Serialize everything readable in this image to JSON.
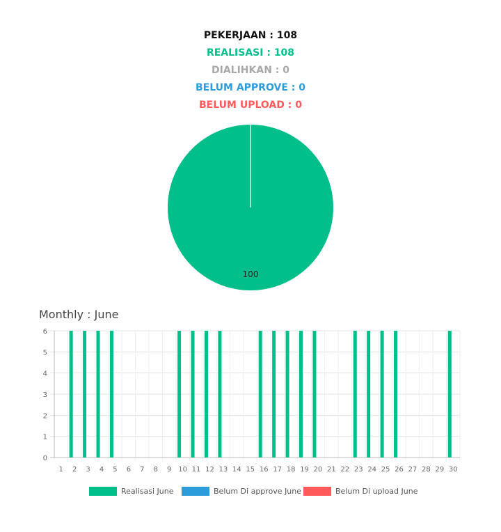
{
  "stats": {
    "pekerjaan": "PEKERJAAN : 108",
    "realisasi": "REALISASI : 108",
    "dialihkan": "DIALIHKAN : 0",
    "belum_approve": "BELUM APPROVE : 0",
    "belum_upload": "BELUM UPLOAD : 0"
  },
  "colors": {
    "pekerjaan": "#111111",
    "realisasi": "#00bf8a",
    "dialihkan": "#a8a8a8",
    "belum_approve": "#2d9cdb",
    "belum_upload": "#ff5a5a"
  },
  "monthly_title": "Monthly : June",
  "chart_data": [
    {
      "type": "pie",
      "categories": [
        "Realisasi"
      ],
      "values": [
        100
      ],
      "data_labels": [
        "100"
      ],
      "colors": [
        "#00bf8a"
      ]
    },
    {
      "type": "bar",
      "title": "",
      "xlabel": "",
      "ylabel": "",
      "ylim": [
        0,
        6
      ],
      "yticks": [
        "0",
        "1",
        "2",
        "3",
        "4",
        "5",
        "6"
      ],
      "grid": true,
      "legend_position": "bottom",
      "categories": [
        "1",
        "2",
        "3",
        "4",
        "5",
        "6",
        "7",
        "8",
        "9",
        "10",
        "11",
        "12",
        "13",
        "14",
        "15",
        "16",
        "17",
        "18",
        "19",
        "20",
        "21",
        "22",
        "23",
        "24",
        "25",
        "26",
        "27",
        "28",
        "29",
        "30"
      ],
      "series": [
        {
          "name": "Realisasi June",
          "color": "#00bf8a",
          "values": [
            0,
            6,
            6,
            6,
            6,
            0,
            0,
            0,
            0,
            6,
            6,
            6,
            6,
            0,
            0,
            6,
            6,
            6,
            6,
            6,
            0,
            0,
            6,
            6,
            6,
            6,
            0,
            0,
            0,
            6
          ]
        },
        {
          "name": "Belum Di approve June",
          "color": "#2d9cdb",
          "values": [
            0,
            0,
            0,
            0,
            0,
            0,
            0,
            0,
            0,
            0,
            0,
            0,
            0,
            0,
            0,
            0,
            0,
            0,
            0,
            0,
            0,
            0,
            0,
            0,
            0,
            0,
            0,
            0,
            0,
            0
          ]
        },
        {
          "name": "Belum Di upload June",
          "color": "#ff5a5a",
          "values": [
            0,
            0,
            0,
            0,
            0,
            0,
            0,
            0,
            0,
            0,
            0,
            0,
            0,
            0,
            0,
            0,
            0,
            0,
            0,
            0,
            0,
            0,
            0,
            0,
            0,
            0,
            0,
            0,
            0,
            0
          ]
        }
      ]
    }
  ]
}
